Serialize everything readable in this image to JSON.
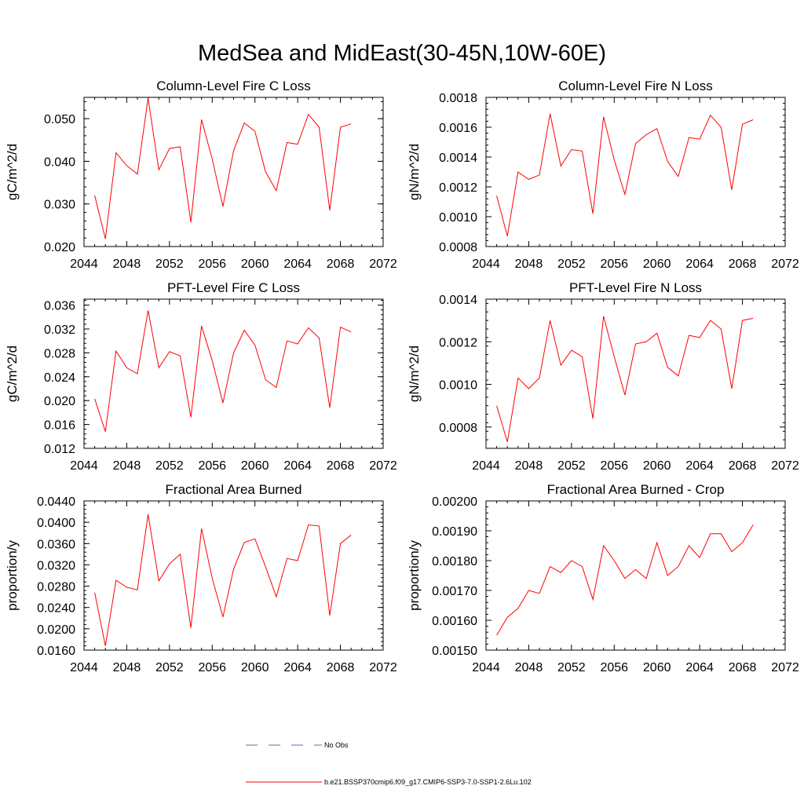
{
  "title": "MedSea and MidEast(30-45N,10W-60E)",
  "colors": {
    "series": "#ff0000",
    "obs": "#6a6aa8",
    "axis": "#000000"
  },
  "legend": {
    "obs_label": "No Obs",
    "model_label": "b.e21.BSSP370cmip6.f09_g17.CMIP6-SSP3-7.0-SSP1-2.6Lu.102"
  },
  "chart_data": [
    {
      "type": "line",
      "title": "Column-Level Fire C Loss",
      "ylabel": "gC/m^2/d",
      "xlim": [
        2044,
        2072
      ],
      "xticks": [
        2044,
        2048,
        2052,
        2056,
        2060,
        2064,
        2068,
        2072
      ],
      "ylim": [
        0.02,
        0.055
      ],
      "yticks": [
        "0.020",
        "0.030",
        "0.040",
        "0.050"
      ],
      "x": [
        2045,
        2046,
        2047,
        2048,
        2049,
        2050,
        2051,
        2052,
        2053,
        2054,
        2055,
        2056,
        2057,
        2058,
        2059,
        2060,
        2061,
        2062,
        2063,
        2064,
        2065,
        2066,
        2067,
        2068,
        2069
      ],
      "values": [
        0.032,
        0.0218,
        0.042,
        0.039,
        0.037,
        0.0548,
        0.038,
        0.043,
        0.0434,
        0.0257,
        0.0498,
        0.0405,
        0.0294,
        0.0425,
        0.049,
        0.047,
        0.0375,
        0.0331,
        0.0444,
        0.044,
        0.051,
        0.048,
        0.0285,
        0.048,
        0.0488
      ]
    },
    {
      "type": "line",
      "title": "Column-Level Fire N Loss",
      "ylabel": "gN/m^2/d",
      "xlim": [
        2044,
        2072
      ],
      "xticks": [
        2044,
        2048,
        2052,
        2056,
        2060,
        2064,
        2068,
        2072
      ],
      "ylim": [
        0.0008,
        0.0018
      ],
      "yticks": [
        "0.0008",
        "0.0010",
        "0.0012",
        "0.0014",
        "0.0016",
        "0.0018"
      ],
      "x": [
        2045,
        2046,
        2047,
        2048,
        2049,
        2050,
        2051,
        2052,
        2053,
        2054,
        2055,
        2056,
        2057,
        2058,
        2059,
        2060,
        2061,
        2062,
        2063,
        2064,
        2065,
        2066,
        2067,
        2068,
        2069
      ],
      "values": [
        0.00114,
        0.00087,
        0.0013,
        0.00125,
        0.00128,
        0.00169,
        0.00134,
        0.00145,
        0.00144,
        0.00102,
        0.00167,
        0.00138,
        0.00115,
        0.00149,
        0.00155,
        0.00159,
        0.00137,
        0.00127,
        0.00153,
        0.00152,
        0.00168,
        0.0016,
        0.00118,
        0.00162,
        0.00165
      ]
    },
    {
      "type": "line",
      "title": "PFT-Level Fire C Loss",
      "ylabel": "gC/m^2/d",
      "xlim": [
        2044,
        2072
      ],
      "xticks": [
        2044,
        2048,
        2052,
        2056,
        2060,
        2064,
        2068,
        2072
      ],
      "ylim": [
        0.012,
        0.037
      ],
      "yticks": [
        "0.012",
        "0.016",
        "0.020",
        "0.024",
        "0.028",
        "0.032",
        "0.036"
      ],
      "x": [
        2045,
        2046,
        2047,
        2048,
        2049,
        2050,
        2051,
        2052,
        2053,
        2054,
        2055,
        2056,
        2057,
        2058,
        2059,
        2060,
        2061,
        2062,
        2063,
        2064,
        2065,
        2066,
        2067,
        2068,
        2069
      ],
      "values": [
        0.0203,
        0.0148,
        0.0283,
        0.0255,
        0.0245,
        0.0351,
        0.0255,
        0.0282,
        0.0275,
        0.0172,
        0.0325,
        0.0267,
        0.0196,
        0.028,
        0.0318,
        0.0293,
        0.0235,
        0.0222,
        0.03,
        0.0295,
        0.0322,
        0.0305,
        0.0188,
        0.0323,
        0.0315
      ]
    },
    {
      "type": "line",
      "title": "PFT-Level Fire N Loss",
      "ylabel": "gN/m^2/d",
      "xlim": [
        2044,
        2072
      ],
      "xticks": [
        2044,
        2048,
        2052,
        2056,
        2060,
        2064,
        2068,
        2072
      ],
      "ylim": [
        0.0007,
        0.0014
      ],
      "yticks": [
        "0.0008",
        "0.0010",
        "0.0012",
        "0.0014"
      ],
      "x": [
        2045,
        2046,
        2047,
        2048,
        2049,
        2050,
        2051,
        2052,
        2053,
        2054,
        2055,
        2056,
        2057,
        2058,
        2059,
        2060,
        2061,
        2062,
        2063,
        2064,
        2065,
        2066,
        2067,
        2068,
        2069
      ],
      "values": [
        0.0009,
        0.00073,
        0.00103,
        0.00098,
        0.00103,
        0.0013,
        0.00109,
        0.00116,
        0.00113,
        0.00084,
        0.00132,
        0.00113,
        0.00095,
        0.00119,
        0.0012,
        0.00124,
        0.00108,
        0.00104,
        0.00123,
        0.00122,
        0.0013,
        0.00126,
        0.00098,
        0.0013,
        0.00131
      ]
    },
    {
      "type": "line",
      "title": "Fractional Area Burned",
      "ylabel": "proportion/y",
      "xlim": [
        2044,
        2072
      ],
      "xticks": [
        2044,
        2048,
        2052,
        2056,
        2060,
        2064,
        2068,
        2072
      ],
      "ylim": [
        0.016,
        0.044
      ],
      "yticks": [
        "0.0160",
        "0.0200",
        "0.0240",
        "0.0280",
        "0.0320",
        "0.0360",
        "0.0400",
        "0.0440"
      ],
      "x": [
        2045,
        2046,
        2047,
        2048,
        2049,
        2050,
        2051,
        2052,
        2053,
        2054,
        2055,
        2056,
        2057,
        2058,
        2059,
        2060,
        2061,
        2062,
        2063,
        2064,
        2065,
        2066,
        2067,
        2068,
        2069
      ],
      "values": [
        0.0268,
        0.0168,
        0.0291,
        0.0278,
        0.0273,
        0.0415,
        0.029,
        0.0322,
        0.034,
        0.0202,
        0.0388,
        0.0295,
        0.0222,
        0.0312,
        0.0362,
        0.0369,
        0.0316,
        0.026,
        0.0332,
        0.0328,
        0.0395,
        0.0393,
        0.0225,
        0.036,
        0.0376
      ]
    },
    {
      "type": "line",
      "title": "Fractional Area Burned - Crop",
      "ylabel": "proportion/y",
      "xlim": [
        2044,
        2072
      ],
      "xticks": [
        2044,
        2048,
        2052,
        2056,
        2060,
        2064,
        2068,
        2072
      ],
      "ylim": [
        0.0015,
        0.002
      ],
      "yticks": [
        "0.00150",
        "0.00160",
        "0.00170",
        "0.00180",
        "0.00190",
        "0.00200"
      ],
      "x": [
        2045,
        2046,
        2047,
        2048,
        2049,
        2050,
        2051,
        2052,
        2053,
        2054,
        2055,
        2056,
        2057,
        2058,
        2059,
        2060,
        2061,
        2062,
        2063,
        2064,
        2065,
        2066,
        2067,
        2068,
        2069
      ],
      "values": [
        0.00155,
        0.00161,
        0.00164,
        0.0017,
        0.00169,
        0.00178,
        0.00176,
        0.0018,
        0.00178,
        0.00167,
        0.00185,
        0.0018,
        0.00174,
        0.00177,
        0.00174,
        0.00186,
        0.00175,
        0.00178,
        0.00185,
        0.00181,
        0.00189,
        0.00189,
        0.00183,
        0.00186,
        0.00192
      ]
    }
  ]
}
